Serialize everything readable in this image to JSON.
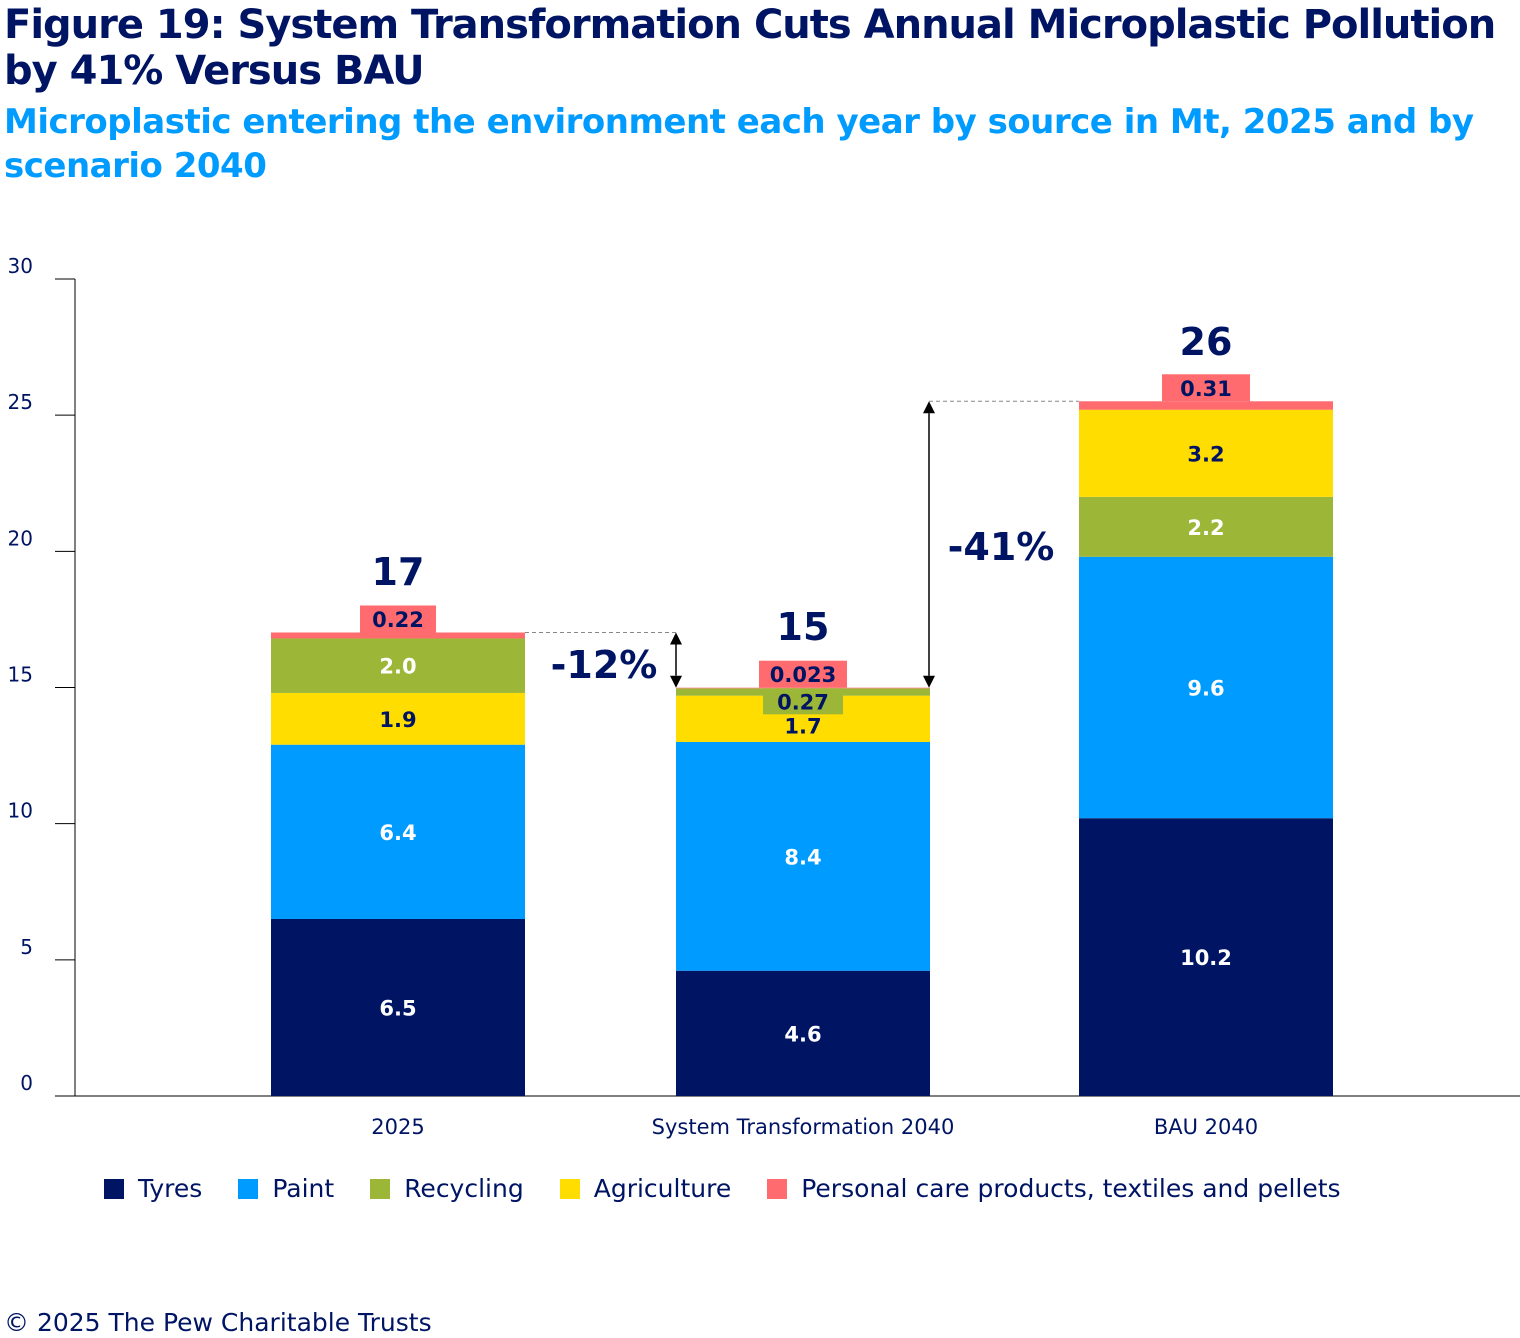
{
  "title": "Figure 19: System Transformation Cuts Annual Microplastic Pollution by 41% Versus BAU",
  "subtitle": "Microplastic entering the environment each year by source in Mt, 2025 and by scenario 2040",
  "credit": "© 2025 The Pew Charitable Trusts",
  "chart_data": {
    "type": "bar",
    "stacked": true,
    "categories": [
      "2025",
      "System Transformation 2040",
      "BAU 2040"
    ],
    "ylim": [
      0,
      30
    ],
    "yticks": [
      "0",
      "5",
      "10",
      "15",
      "20",
      "25",
      "30"
    ],
    "xlabel": "",
    "ylabel": "",
    "grid": false,
    "legend_position": "bottom",
    "series": [
      {
        "name": "Tyres",
        "color": "#001464",
        "values": [
          6.5,
          4.6,
          10.2
        ],
        "labels": [
          "6.5",
          "4.6",
          "10.2"
        ]
      },
      {
        "name": "Paint",
        "color": "#009BFF",
        "values": [
          6.4,
          8.4,
          9.6
        ],
        "labels": [
          "6.4",
          "8.4",
          "9.6"
        ]
      },
      {
        "name": "Recycling",
        "color": "#9CB637",
        "values": [
          2.0,
          0.27,
          2.2
        ],
        "labels": [
          "2.0",
          "0.27",
          "2.2"
        ]
      },
      {
        "name": "Agriculture",
        "color": "#FFDD00",
        "values": [
          1.9,
          1.7,
          3.2
        ],
        "labels": [
          "1.9",
          "1.7",
          "3.2"
        ]
      },
      {
        "name": "Personal care products, textiles and pellets",
        "color": "#FF6B6F",
        "values": [
          0.22,
          0.023,
          0.31
        ],
        "labels": [
          "0.22",
          "0.023",
          "0.31"
        ]
      }
    ],
    "stack_order": [
      [
        "Tyres",
        "Paint",
        "Agriculture",
        "Recycling",
        "Personal care products, textiles and pellets"
      ],
      [
        "Tyres",
        "Paint",
        "Agriculture",
        "Recycling",
        "Personal care products, textiles and pellets"
      ],
      [
        "Tyres",
        "Paint",
        "Recycling",
        "Agriculture",
        "Personal care products, textiles and pellets"
      ]
    ],
    "totals": [
      "17",
      "15",
      "26"
    ],
    "annotations": [
      {
        "text": "-12%",
        "from": "2025",
        "to": "System Transformation 2040"
      },
      {
        "text": "-41%",
        "from": "BAU 2040",
        "to": "System Transformation 2040"
      }
    ]
  }
}
